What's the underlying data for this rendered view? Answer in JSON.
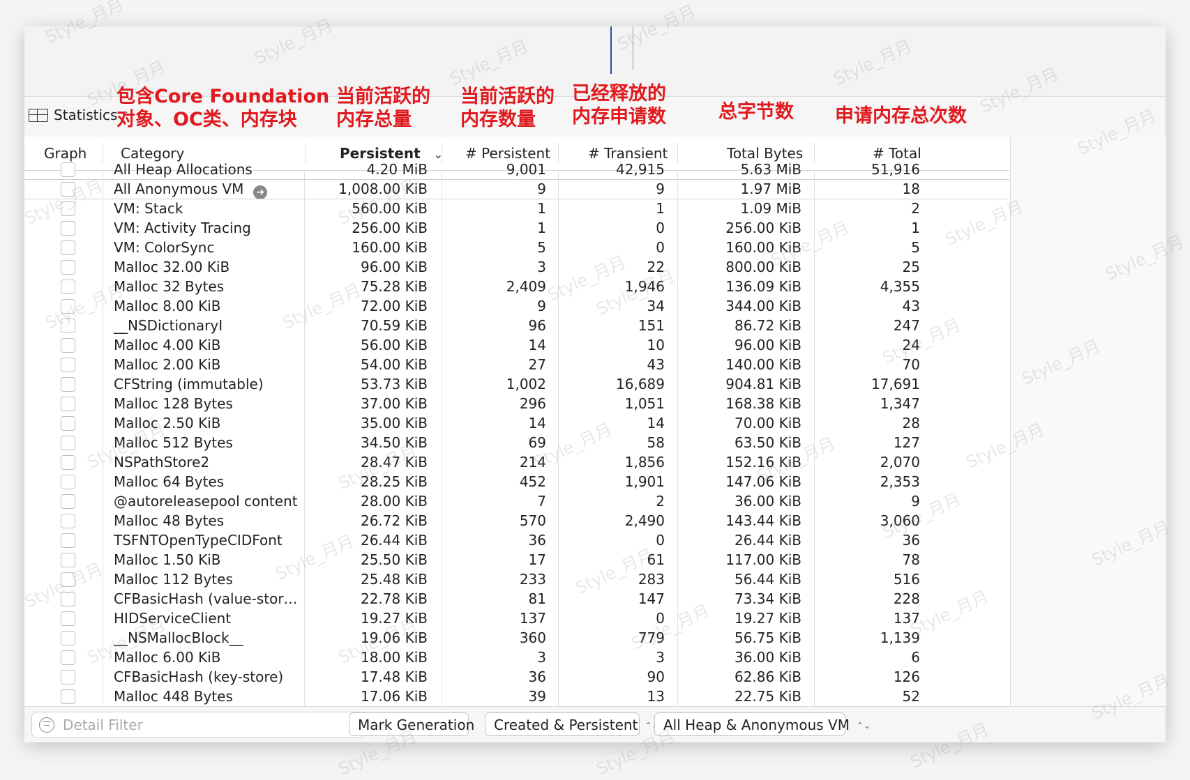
{
  "toolbar": {
    "statistics_label": "Statistics"
  },
  "annotations": [
    {
      "line1": "包含Core Foundation",
      "line2": "对象、OC类、内存块"
    },
    {
      "line1": "当前活跃的",
      "line2": "内存总量"
    },
    {
      "line1": "当前活跃的",
      "line2": "内存数量"
    },
    {
      "line1": "已经释放的",
      "line2": "内存申请数"
    },
    {
      "line1": "总字节数",
      "line2": ""
    },
    {
      "line1": "申请内存总次数",
      "line2": ""
    }
  ],
  "table": {
    "columns": [
      "Graph",
      "Category",
      "Persistent",
      "# Persistent",
      "# Transient",
      "Total Bytes",
      "# Total"
    ],
    "sort_indicator": "⌄",
    "partial_top_row": [
      "All Heap Allocations",
      "4.20 MiB",
      "9,001",
      "42,915",
      "5.63 MiB",
      "51,916"
    ],
    "rows": [
      [
        "All Anonymous VM",
        "1,008.00 KiB",
        "9",
        "9",
        "1.97 MiB",
        "18"
      ],
      [
        "VM: Stack",
        "560.00 KiB",
        "1",
        "1",
        "1.09 MiB",
        "2"
      ],
      [
        "VM: Activity Tracing",
        "256.00 KiB",
        "1",
        "0",
        "256.00 KiB",
        "1"
      ],
      [
        "VM: ColorSync",
        "160.00 KiB",
        "5",
        "0",
        "160.00 KiB",
        "5"
      ],
      [
        "Malloc 32.00 KiB",
        "96.00 KiB",
        "3",
        "22",
        "800.00 KiB",
        "25"
      ],
      [
        "Malloc 32 Bytes",
        "75.28 KiB",
        "2,409",
        "1,946",
        "136.09 KiB",
        "4,355"
      ],
      [
        "Malloc 8.00 KiB",
        "72.00 KiB",
        "9",
        "34",
        "344.00 KiB",
        "43"
      ],
      [
        "__NSDictionaryI",
        "70.59 KiB",
        "96",
        "151",
        "86.72 KiB",
        "247"
      ],
      [
        "Malloc 4.00 KiB",
        "56.00 KiB",
        "14",
        "10",
        "96.00 KiB",
        "24"
      ],
      [
        "Malloc 2.00 KiB",
        "54.00 KiB",
        "27",
        "43",
        "140.00 KiB",
        "70"
      ],
      [
        "CFString (immutable)",
        "53.73 KiB",
        "1,002",
        "16,689",
        "904.81 KiB",
        "17,691"
      ],
      [
        "Malloc 128 Bytes",
        "37.00 KiB",
        "296",
        "1,051",
        "168.38 KiB",
        "1,347"
      ],
      [
        "Malloc 2.50 KiB",
        "35.00 KiB",
        "14",
        "14",
        "70.00 KiB",
        "28"
      ],
      [
        "Malloc 512 Bytes",
        "34.50 KiB",
        "69",
        "58",
        "63.50 KiB",
        "127"
      ],
      [
        "NSPathStore2",
        "28.47 KiB",
        "214",
        "1,856",
        "152.16 KiB",
        "2,070"
      ],
      [
        "Malloc 64 Bytes",
        "28.25 KiB",
        "452",
        "1,901",
        "147.06 KiB",
        "2,353"
      ],
      [
        "@autoreleasepool content",
        "28.00 KiB",
        "7",
        "2",
        "36.00 KiB",
        "9"
      ],
      [
        "Malloc 48 Bytes",
        "26.72 KiB",
        "570",
        "2,490",
        "143.44 KiB",
        "3,060"
      ],
      [
        "TSFNTOpenTypeCIDFont",
        "26.44 KiB",
        "36",
        "0",
        "26.44 KiB",
        "36"
      ],
      [
        "Malloc 1.50 KiB",
        "25.50 KiB",
        "17",
        "61",
        "117.00 KiB",
        "78"
      ],
      [
        "Malloc 112 Bytes",
        "25.48 KiB",
        "233",
        "283",
        "56.44 KiB",
        "516"
      ],
      [
        "CFBasicHash (value-stor…",
        "22.78 KiB",
        "81",
        "147",
        "73.34 KiB",
        "228"
      ],
      [
        "HIDServiceClient",
        "19.27 KiB",
        "137",
        "0",
        "19.27 KiB",
        "137"
      ],
      [
        "__NSMallocBlock__",
        "19.06 KiB",
        "360",
        "779",
        "56.75 KiB",
        "1,139"
      ],
      [
        "Malloc 6.00 KiB",
        "18.00 KiB",
        "3",
        "3",
        "36.00 KiB",
        "6"
      ],
      [
        "CFBasicHash (key-store)",
        "17.48 KiB",
        "36",
        "90",
        "62.86 KiB",
        "126"
      ],
      [
        "Malloc 448 Bytes",
        "17.06 KiB",
        "39",
        "13",
        "22.75 KiB",
        "52"
      ]
    ]
  },
  "bottom_bar": {
    "filter_placeholder": "Detail Filter",
    "mark_generation": "Mark Generation",
    "created_persistent": "Created & Persistent",
    "heap_scope": "All Heap & Anonymous VM",
    "updown_glyph": "⌃⌄"
  },
  "watermark": "Style_月月"
}
